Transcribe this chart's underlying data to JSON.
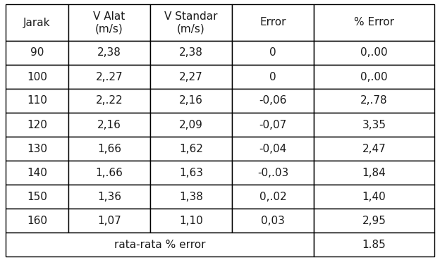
{
  "headers": [
    "Jarak",
    "V Alat\n(m/s)",
    "V Standar\n(m/s)",
    "Error",
    "% Error"
  ],
  "rows": [
    [
      "90",
      "2,38",
      "2,38",
      "0",
      "0,.00"
    ],
    [
      "100",
      "2,.27",
      "2,27",
      "0",
      "0,.00"
    ],
    [
      "110",
      "2,.22",
      "2,16",
      "-0,06",
      "2,.78"
    ],
    [
      "120",
      "2,16",
      "2,09",
      "-0,07",
      "3,35"
    ],
    [
      "130",
      "1,66",
      "1,62",
      "-0,04",
      "2,47"
    ],
    [
      "140",
      "1,.66",
      "1,63",
      "-0,.03",
      "1,84"
    ],
    [
      "150",
      "1,36",
      "1,38",
      "0,.02",
      "1,40"
    ],
    [
      "160",
      "1,07",
      "1,10",
      "0,03",
      "2,95"
    ]
  ],
  "footer_label": "rata-rata % error",
  "footer_value": "1.85",
  "background_color": "#ffffff",
  "border_color": "#000000",
  "text_color": "#1a1a1a",
  "font_size": 11,
  "header_font_size": 11,
  "figwidth": 6.24,
  "figheight": 3.86,
  "dpi": 100
}
